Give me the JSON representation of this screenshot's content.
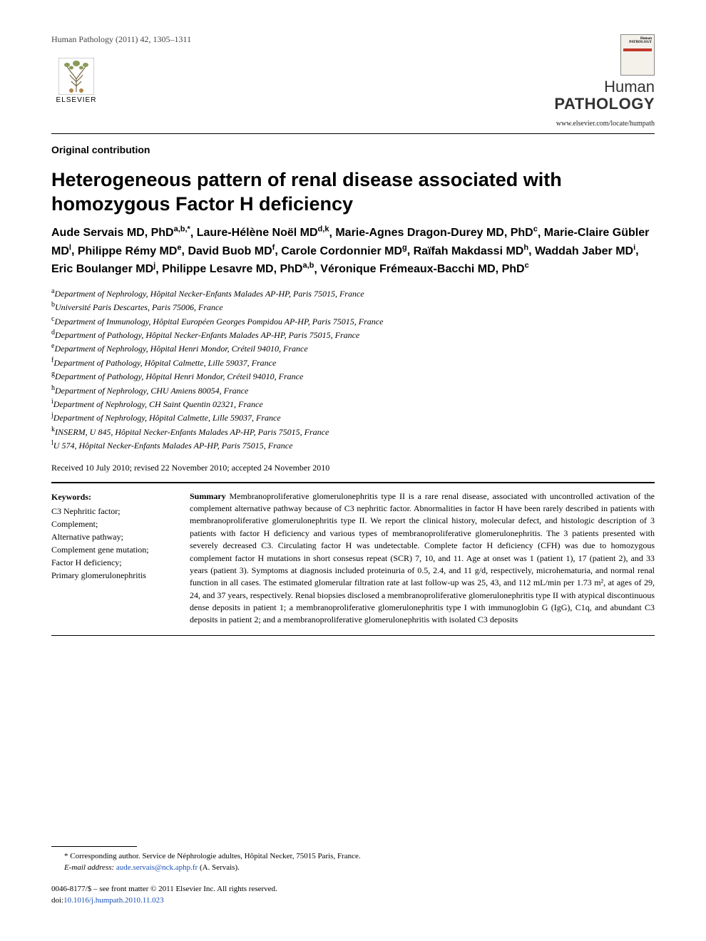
{
  "running_head": "Human Pathology (2011) 42, 1305–1311",
  "publisher": {
    "name": "ELSEVIER"
  },
  "journal": {
    "brand_line1": "Human",
    "brand_line2": "PATHOLOGY",
    "url": "www.elsevier.com/locate/humpath"
  },
  "article": {
    "type": "Original contribution",
    "title": "Heterogeneous pattern of renal disease associated with homozygous Factor H deficiency",
    "received": "Received 10 July 2010; revised 22 November 2010; accepted 24 November 2010"
  },
  "authors": [
    {
      "name": "Aude Servais MD, PhD",
      "sup": "a,b,",
      "star": true
    },
    {
      "name": "Laure-Hélène Noël MD",
      "sup": "d,k"
    },
    {
      "name": "Marie-Agnes Dragon-Durey MD, PhD",
      "sup": "c"
    },
    {
      "name": "Marie-Claire Gübler MD",
      "sup": "l"
    },
    {
      "name": "Philippe Rémy MD",
      "sup": "e"
    },
    {
      "name": "David Buob MD",
      "sup": "f"
    },
    {
      "name": "Carole Cordonnier MD",
      "sup": "g"
    },
    {
      "name": "Raïfah Makdassi MD",
      "sup": "h"
    },
    {
      "name": "Waddah Jaber MD",
      "sup": "i"
    },
    {
      "name": "Eric Boulanger MD",
      "sup": "j"
    },
    {
      "name": "Philippe Lesavre MD, PhD",
      "sup": "a,b"
    },
    {
      "name": "Véronique Frémeaux-Bacchi MD, PhD",
      "sup": "c"
    }
  ],
  "affiliations": [
    {
      "sup": "a",
      "text": "Department of Nephrology, Hôpital Necker-Enfants Malades AP-HP, Paris 75015, France"
    },
    {
      "sup": "b",
      "text": "Université Paris Descartes, Paris 75006, France"
    },
    {
      "sup": "c",
      "text": "Department of Immunology, Hôpital Européen Georges Pompidou AP-HP, Paris 75015, France"
    },
    {
      "sup": "d",
      "text": "Department of Pathology, Hôpital Necker-Enfants Malades AP-HP, Paris 75015, France"
    },
    {
      "sup": "e",
      "text": "Department of Nephrology, Hôpital Henri Mondor, Créteil 94010, France"
    },
    {
      "sup": "f",
      "text": "Department of Pathology, Hôpital Calmette, Lille 59037, France"
    },
    {
      "sup": "g",
      "text": "Department of Pathology, Hôpital Henri Mondor, Créteil 94010, France"
    },
    {
      "sup": "h",
      "text": "Department of Nephrology, CHU Amiens 80054, France"
    },
    {
      "sup": "i",
      "text": "Department of Nephrology, CH Saint Quentin 02321, France"
    },
    {
      "sup": "j",
      "text": "Department of Nephrology, Hôpital Calmette, Lille 59037, France"
    },
    {
      "sup": "k",
      "text": "INSERM, U 845, Hôpital Necker-Enfants Malades AP-HP, Paris 75015, France"
    },
    {
      "sup": "l",
      "text": "U 574, Hôpital Necker-Enfants Malades AP-HP, Paris 75015, France"
    }
  ],
  "keywords": {
    "heading": "Keywords:",
    "items": [
      "C3 Nephritic factor;",
      "Complement;",
      "Alternative pathway;",
      "Complement gene mutation;",
      "Factor H deficiency;",
      "Primary glomerulonephritis"
    ]
  },
  "summary": {
    "heading": "Summary",
    "text": "Membranoproliferative glomerulonephritis type II is a rare renal disease, associated with uncontrolled activation of the complement alternative pathway because of C3 nephritic factor. Abnormalities in factor H have been rarely described in patients with membranoproliferative glomerulonephritis type II. We report the clinical history, molecular defect, and histologic description of 3 patients with factor H deficiency and various types of membranoproliferative glomerulonephritis. The 3 patients presented with severely decreased C3. Circulating factor H was undetectable. Complete factor H deficiency (CFH) was due to homozygous complement factor H mutations in short consesus repeat (SCR) 7, 10, and 11. Age at onset was 1 (patient 1), 17 (patient 2), and 33 years (patient 3). Symptoms at diagnosis included proteinuria of 0.5, 2.4, and 11 g/d, respectively, microhematuria, and normal renal function in all cases. The estimated glomerular filtration rate at last follow-up was 25, 43, and 112 mL/min per 1.73 m², at ages of 29, 24, and 37 years, respectively. Renal biopsies disclosed a membranoproliferative glomerulonephritis type II with atypical discontinuous dense deposits in patient 1; a membranoproliferative glomerulonephritis type I with immunoglobin G (IgG), C1q, and abundant C3 deposits in patient 2; and a membranoproliferative glomerulonephritis with isolated C3 deposits"
  },
  "footnotes": {
    "corresponding": "* Corresponding author. Service de Néphrologie adultes, Hôpital Necker, 75015 Paris, France.",
    "email_label": "E-mail address:",
    "email_value": "aude.servais@nck.aphp.fr",
    "email_paren": "(A. Servais).",
    "copyright": "0046-8177/$ – see front matter © 2011 Elsevier Inc. All rights reserved.",
    "doi_label": "doi:",
    "doi_value": "10.1016/j.humpath.2010.11.023"
  }
}
